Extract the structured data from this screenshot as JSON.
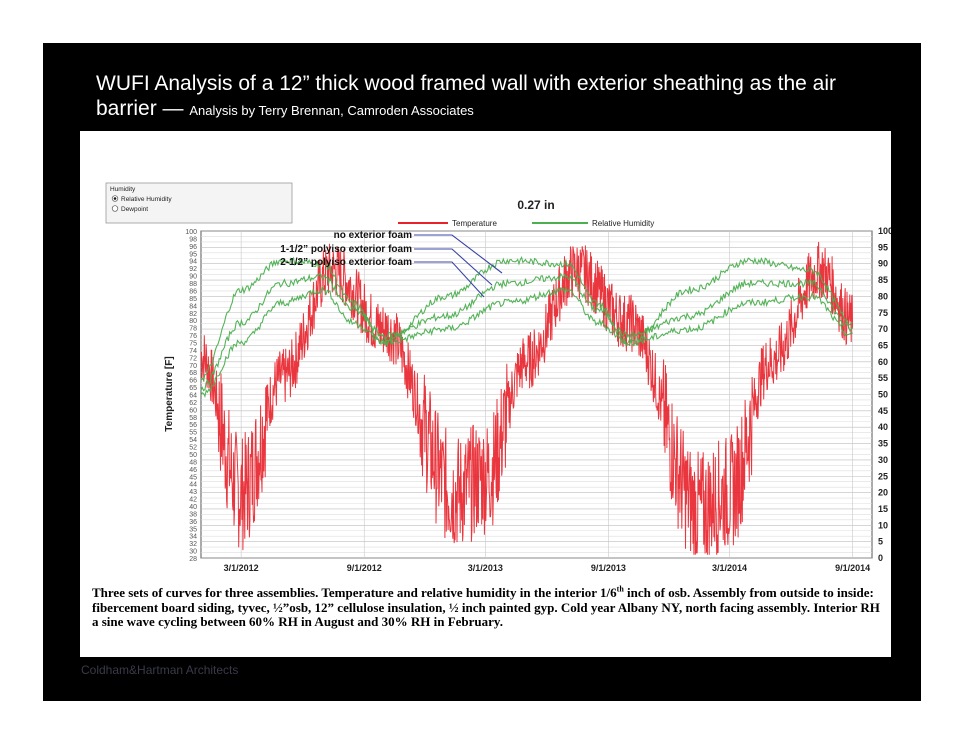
{
  "slide": {
    "title_main": "WUFI Analysis of a 12” thick wood framed wall with exterior sheathing as the air barrier",
    "title_dash": " — ",
    "title_by": "Analysis by Terry Brennan, Camroden Associates",
    "footer": "Coldham&Hartman Architects"
  },
  "figure": {
    "radio_group_title": "Humidity",
    "radio_options": [
      {
        "label": "Relative Humidity",
        "selected": true
      },
      {
        "label": "Dewpoint",
        "selected": false
      }
    ],
    "depth_label": "0.27 in",
    "annotations": [
      "no exterior foam",
      "1-1/2” polyiso exterior foam",
      "2-1/2” polyiso exterior foam"
    ],
    "caption_parts": [
      "Three sets of curves for three assemblies.  Temperature and relative humidity in the interior 1/6",
      "th",
      " inch of osb.  Assembly from outside to inside: fibercement board siding, tyvec, ½”osb, 12” cellulose insulation, ½ inch painted gyp.  Cold year Albany NY, north facing assembly.  Interior RH a sine wave cycling between 60% RH in August and 30% RH in February."
    ]
  },
  "chart_data": {
    "type": "line",
    "title": "0.27 in",
    "ylabel": "Temperature [F]",
    "y2label": "Relative Humidity [%]",
    "x_ticks": [
      "3/1/2012",
      "9/1/2012",
      "3/1/2013",
      "9/1/2013",
      "3/1/2014",
      "9/1/2014"
    ],
    "y_ticks_left": [
      "28",
      "30",
      "32",
      "34",
      "35",
      "36",
      "38",
      "40",
      "42",
      "43",
      "44",
      "45",
      "46",
      "48",
      "50",
      "52",
      "54",
      "55",
      "56",
      "58",
      "60",
      "62",
      "64",
      "65",
      "66",
      "68",
      "70",
      "72",
      "74",
      "75",
      "76",
      "78",
      "80",
      "82",
      "84",
      "85",
      "86",
      "88",
      "90",
      "92",
      "94",
      "95",
      "96",
      "98",
      "100"
    ],
    "y2_ticks": [
      "0",
      "5",
      "10",
      "15",
      "20",
      "25",
      "30",
      "35",
      "40",
      "45",
      "50",
      "55",
      "60",
      "65",
      "70",
      "75",
      "80",
      "85",
      "90",
      "95",
      "100"
    ],
    "y2lim": [
      0,
      100
    ],
    "grid": true,
    "legend_position": "top",
    "series": [
      {
        "name": "Temperature",
        "color": "#e8212a",
        "axis": "left",
        "x": [
          "2012-01-01",
          "2012-03-01",
          "2012-05-01",
          "2012-07-15",
          "2012-10-01",
          "2013-01-15",
          "2013-03-01",
          "2013-05-01",
          "2013-07-15",
          "2013-10-01",
          "2014-01-15",
          "2014-03-01",
          "2014-05-01",
          "2014-07-15",
          "2014-09-01"
        ],
        "y_rh_scale": [
          62,
          20,
          55,
          88,
          70,
          20,
          25,
          60,
          88,
          72,
          15,
          20,
          60,
          88,
          72
        ]
      },
      {
        "name": "Relative Humidity",
        "color": "#4caf50",
        "axis": "right",
        "curves": [
          {
            "label": "no exterior foam",
            "x": [
              "2012-01-01",
              "2012-03-01",
              "2012-05-01",
              "2012-07-01",
              "2012-08-15",
              "2012-10-01",
              "2013-01-01",
              "2013-04-01",
              "2013-07-01",
              "2013-08-15",
              "2013-10-01",
              "2014-01-01",
              "2014-04-01",
              "2014-07-01",
              "2014-09-01"
            ],
            "y": [
              55,
              82,
              91,
              90,
              78,
              66,
              80,
              91,
              90,
              78,
              66,
              82,
              91,
              88,
              72
            ]
          },
          {
            "label": "1-1/2” polyiso exterior foam",
            "x": [
              "2012-01-01",
              "2012-03-01",
              "2012-05-01",
              "2012-07-01",
              "2012-08-15",
              "2012-10-01",
              "2013-01-01",
              "2013-04-01",
              "2013-07-01",
              "2013-08-15",
              "2013-10-01",
              "2014-01-01",
              "2014-04-01",
              "2014-07-01",
              "2014-09-01"
            ],
            "y": [
              52,
              72,
              84,
              86,
              76,
              68,
              74,
              84,
              86,
              76,
              68,
              74,
              84,
              84,
              70
            ]
          },
          {
            "label": "2-1/2” polyiso exterior foam",
            "x": [
              "2012-01-01",
              "2012-03-01",
              "2012-05-01",
              "2012-07-01",
              "2012-08-15",
              "2012-10-01",
              "2013-01-01",
              "2013-04-01",
              "2013-07-01",
              "2013-08-15",
              "2013-10-01",
              "2014-01-01",
              "2014-04-01",
              "2014-07-01",
              "2014-09-01"
            ],
            "y": [
              50,
              66,
              78,
              82,
              72,
              66,
              70,
              78,
              82,
              72,
              66,
              70,
              78,
              80,
              68
            ]
          }
        ]
      }
    ]
  }
}
